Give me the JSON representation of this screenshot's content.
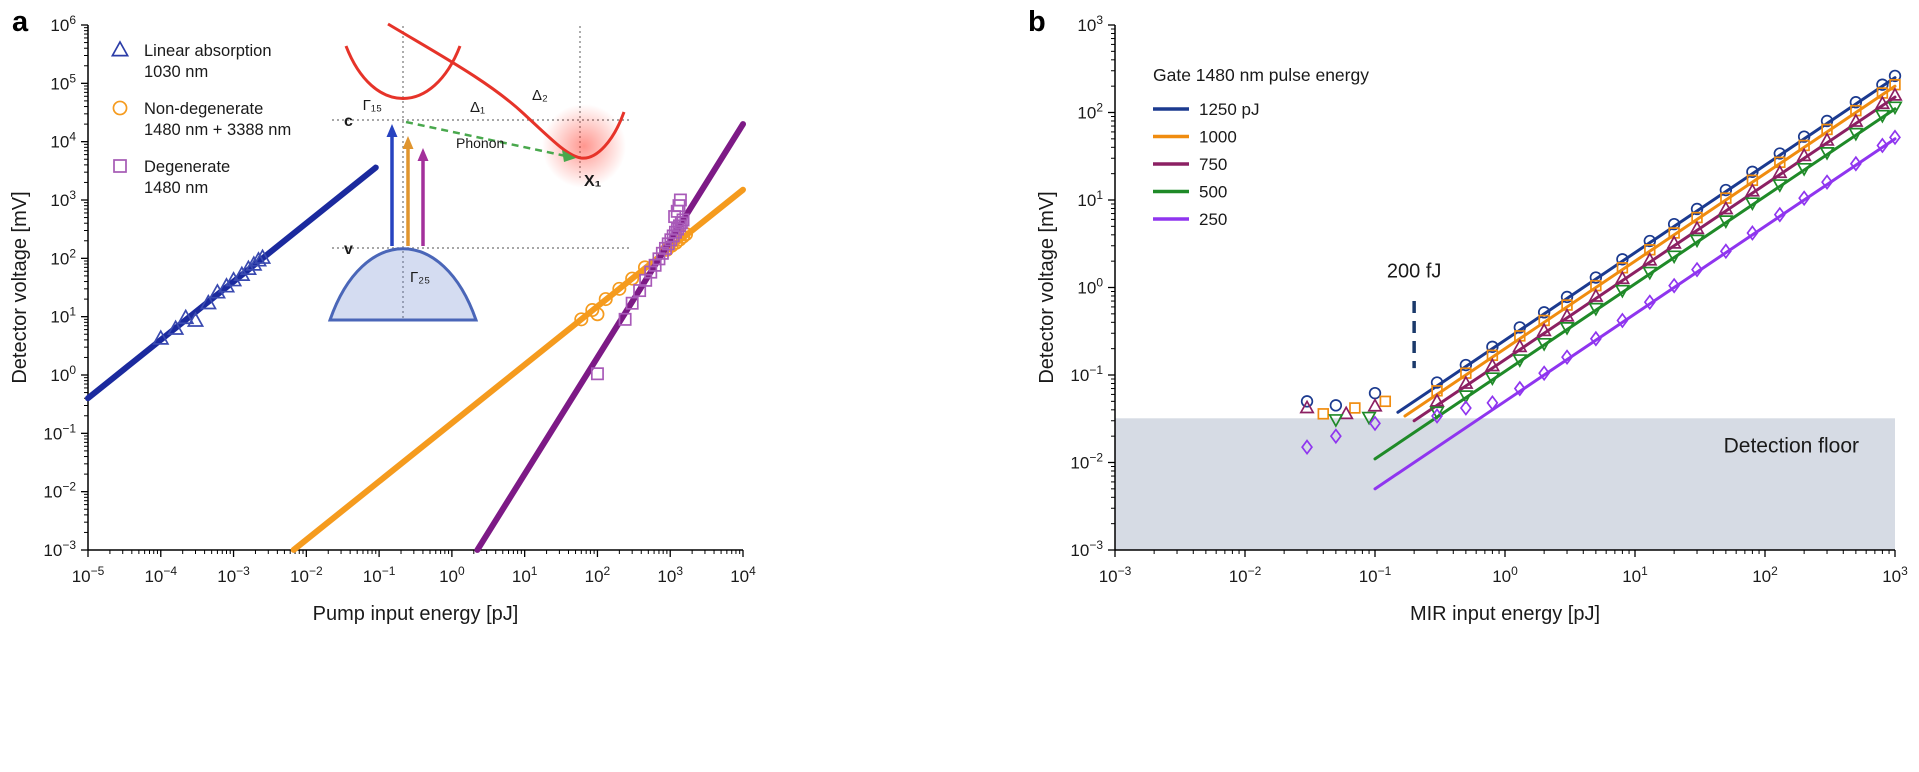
{
  "figure": {
    "panel_a_label": "a",
    "panel_b_label": "b"
  },
  "chart_data": [
    {
      "id": "a",
      "type": "scatter",
      "xscale": "log",
      "yscale": "log",
      "xlabel": "Pump input energy [pJ]",
      "ylabel": "Detector voltage [mV]",
      "xlim": [
        1e-05,
        10000.0
      ],
      "ylim": [
        0.001,
        1000000.0
      ],
      "legend": {
        "entries": [
          {
            "label": "Linear absorption",
            "label2": "1030 nm",
            "marker": "triangle-up",
            "color": "#2c3da8"
          },
          {
            "label": "Non-degenerate",
            "label2": "1480 nm + 3388 nm",
            "marker": "circle",
            "color": "#f59b1e"
          },
          {
            "label": "Degenerate",
            "label2": "1480 nm",
            "marker": "square",
            "color": "#a55ab4"
          }
        ]
      },
      "series": [
        {
          "name": "Linear absorption 1030 nm",
          "color": "#1b2a9e",
          "marker_color": "#3a4ab0",
          "marker": "triangle-up",
          "fit_line": {
            "coeff": 40000,
            "power": 1.0,
            "x_start": 1e-05,
            "x_end": 0.09,
            "width": 6
          },
          "points": [
            [
              0.0001,
              4.2
            ],
            [
              0.00016,
              6.2
            ],
            [
              0.00022,
              9.5
            ],
            [
              0.0003,
              8.5
            ],
            [
              0.00045,
              17
            ],
            [
              0.0006,
              26
            ],
            [
              0.0008,
              33
            ],
            [
              0.001,
              42
            ],
            [
              0.0013,
              52
            ],
            [
              0.0016,
              66
            ],
            [
              0.0019,
              78
            ],
            [
              0.0022,
              92
            ],
            [
              0.0025,
              102
            ]
          ]
        },
        {
          "name": "Non-degenerate 1480 nm + 3388 nm",
          "color": "#f59b1e",
          "marker": "circle",
          "fit_line": {
            "coeff": 0.15,
            "power": 1.0,
            "x_start": 0.0067,
            "x_end": 10000,
            "width": 6
          },
          "points": [
            [
              60,
              9
            ],
            [
              85,
              13
            ],
            [
              100,
              11
            ],
            [
              130,
              20
            ],
            [
              200,
              30
            ],
            [
              300,
              45
            ],
            [
              450,
              70
            ],
            [
              900,
              140
            ],
            [
              1050,
              165
            ],
            [
              1200,
              185
            ],
            [
              1350,
              210
            ],
            [
              1500,
              235
            ],
            [
              1650,
              260
            ]
          ]
        },
        {
          "name": "Degenerate 1480 nm",
          "color": "#7d1a86",
          "marker_color": "#a85ab8",
          "marker": "square",
          "fit_line": {
            "coeff": 0.0002,
            "power": 2.0,
            "x_start": 2.24,
            "x_end": 10000,
            "width": 6
          },
          "points": [
            [
              100,
              1.05
            ],
            [
              240,
              9
            ],
            [
              300,
              17
            ],
            [
              380,
              28
            ],
            [
              460,
              42
            ],
            [
              540,
              58
            ],
            [
              620,
              76
            ],
            [
              700,
              98
            ],
            [
              780,
              122
            ],
            [
              860,
              148
            ],
            [
              940,
              177
            ],
            [
              1020,
              208
            ],
            [
              1100,
              242
            ],
            [
              1180,
              280
            ],
            [
              1260,
              318
            ],
            [
              1340,
              360
            ],
            [
              1420,
              405
            ],
            [
              1500,
              455
            ],
            [
              1150,
              520
            ],
            [
              1250,
              640
            ],
            [
              1320,
              800
            ],
            [
              1380,
              1000
            ]
          ]
        }
      ],
      "inset": {
        "labels": {
          "gamma15": "Γ₁₅",
          "gamma25": "Γ₂₅",
          "delta1": "Δ₁",
          "delta2": "Δ₂",
          "c": "c",
          "v": "v",
          "x1": "X₁",
          "phonon": "Phonon"
        }
      }
    },
    {
      "id": "b",
      "type": "scatter",
      "xscale": "log",
      "yscale": "log",
      "xlabel": "MIR input energy [pJ]",
      "ylabel": "Detector voltage [mV]",
      "xlim": [
        0.001,
        1000.0
      ],
      "ylim": [
        0.001,
        1000.0
      ],
      "legend": {
        "title": "Gate 1480 nm pulse energy",
        "entries": [
          {
            "label": "1250 pJ",
            "color": "#1b3a8f"
          },
          {
            "label": "1000",
            "color": "#f08c0f"
          },
          {
            "label": "750",
            "color": "#8c2063"
          },
          {
            "label": "500",
            "color": "#1f8a28"
          },
          {
            "label": "250",
            "color": "#8f35ef"
          }
        ]
      },
      "annotations": {
        "floor": {
          "label": "Detection floor",
          "y_top": 0.032,
          "label_y": 0.013,
          "color": "#d6dbe4"
        },
        "pulse_marker": {
          "label": "200 fJ",
          "x": 0.2,
          "text_y": 1.3,
          "line_y_top": 0.7,
          "line_y_bottom": 0.12,
          "color": "#1b3a6b"
        }
      },
      "series": [
        {
          "name": "Gate 1250 pJ",
          "color": "#1b3a8f",
          "marker": "circle",
          "fit_line": {
            "coeff": 0.25,
            "power": 1.0,
            "x_start": 0.15,
            "x_end": 1000,
            "width": 3
          },
          "points": [
            [
              0.03,
              0.05
            ],
            [
              0.05,
              0.045
            ],
            [
              0.1,
              0.062
            ],
            [
              0.3,
              0.082
            ],
            [
              0.5,
              0.13
            ],
            [
              0.8,
              0.21
            ],
            [
              1.3,
              0.35
            ],
            [
              2,
              0.52
            ],
            [
              3,
              0.78
            ],
            [
              5,
              1.3
            ],
            [
              8,
              2.1
            ],
            [
              13,
              3.4
            ],
            [
              20,
              5.3
            ],
            [
              30,
              7.9
            ],
            [
              50,
              13
            ],
            [
              80,
              21
            ],
            [
              130,
              34
            ],
            [
              200,
              53
            ],
            [
              300,
              80
            ],
            [
              500,
              131
            ],
            [
              800,
              208
            ],
            [
              1000,
              262
            ]
          ]
        },
        {
          "name": "Gate 1000 pJ",
          "color": "#f08c0f",
          "marker": "square",
          "fit_line": {
            "coeff": 0.2,
            "power": 1.0,
            "x_start": 0.17,
            "x_end": 1000,
            "width": 3
          },
          "points": [
            [
              0.04,
              0.036
            ],
            [
              0.07,
              0.042
            ],
            [
              0.12,
              0.05
            ],
            [
              0.3,
              0.066
            ],
            [
              0.5,
              0.105
            ],
            [
              0.8,
              0.168
            ],
            [
              1.3,
              0.28
            ],
            [
              2,
              0.42
            ],
            [
              3,
              0.63
            ],
            [
              5,
              1.05
            ],
            [
              8,
              1.68
            ],
            [
              13,
              2.7
            ],
            [
              20,
              4.2
            ],
            [
              30,
              6.3
            ],
            [
              50,
              10.5
            ],
            [
              80,
              16.8
            ],
            [
              130,
              27
            ],
            [
              200,
              42
            ],
            [
              300,
              64
            ],
            [
              500,
              105
            ],
            [
              800,
              167
            ],
            [
              1000,
              208
            ]
          ]
        },
        {
          "name": "Gate 750 pJ",
          "color": "#8c2063",
          "marker": "triangle-up",
          "fit_line": {
            "coeff": 0.15,
            "power": 1.0,
            "x_start": 0.2,
            "x_end": 1000,
            "width": 3
          },
          "points": [
            [
              0.03,
              0.042
            ],
            [
              0.06,
              0.036
            ],
            [
              0.1,
              0.044
            ],
            [
              0.3,
              0.05
            ],
            [
              0.5,
              0.08
            ],
            [
              0.8,
              0.127
            ],
            [
              1.3,
              0.21
            ],
            [
              2,
              0.32
            ],
            [
              3,
              0.47
            ],
            [
              5,
              0.79
            ],
            [
              8,
              1.26
            ],
            [
              13,
              2.05
            ],
            [
              20,
              3.2
            ],
            [
              30,
              4.7
            ],
            [
              50,
              7.9
            ],
            [
              80,
              12.6
            ],
            [
              130,
              20.5
            ],
            [
              200,
              32
            ],
            [
              300,
              48
            ],
            [
              500,
              79
            ],
            [
              800,
              126
            ],
            [
              1000,
              157
            ]
          ]
        },
        {
          "name": "Gate 500 pJ",
          "color": "#1f8a28",
          "marker": "triangle-down",
          "fit_line": {
            "coeff": 0.11,
            "power": 1.0,
            "x_start": 0.1,
            "x_end": 1000,
            "width": 3
          },
          "points": [
            [
              0.05,
              0.031
            ],
            [
              0.09,
              0.033
            ],
            [
              0.3,
              0.038
            ],
            [
              0.5,
              0.058
            ],
            [
              0.8,
              0.093
            ],
            [
              1.3,
              0.15
            ],
            [
              2,
              0.23
            ],
            [
              3,
              0.35
            ],
            [
              5,
              0.58
            ],
            [
              8,
              0.93
            ],
            [
              13,
              1.5
            ],
            [
              20,
              2.3
            ],
            [
              30,
              3.5
            ],
            [
              50,
              5.8
            ],
            [
              80,
              9.3
            ],
            [
              130,
              15
            ],
            [
              200,
              23
            ],
            [
              300,
              35
            ],
            [
              500,
              58
            ],
            [
              800,
              93
            ],
            [
              1000,
              116
            ]
          ]
        },
        {
          "name": "Gate 250 pJ",
          "color": "#8f35ef",
          "marker": "diamond",
          "fit_line": {
            "coeff": 0.05,
            "power": 1.0,
            "x_start": 0.1,
            "x_end": 1000,
            "width": 3
          },
          "points": [
            [
              0.03,
              0.015
            ],
            [
              0.05,
              0.02
            ],
            [
              0.1,
              0.028
            ],
            [
              0.3,
              0.034
            ],
            [
              0.5,
              0.042
            ],
            [
              0.8,
              0.048
            ],
            [
              1.3,
              0.07
            ],
            [
              2,
              0.105
            ],
            [
              3,
              0.16
            ],
            [
              5,
              0.26
            ],
            [
              8,
              0.42
            ],
            [
              13,
              0.68
            ],
            [
              20,
              1.05
            ],
            [
              30,
              1.6
            ],
            [
              50,
              2.6
            ],
            [
              80,
              4.2
            ],
            [
              130,
              6.8
            ],
            [
              200,
              10.5
            ],
            [
              300,
              16
            ],
            [
              500,
              26
            ],
            [
              800,
              42
            ],
            [
              1000,
              52
            ]
          ]
        }
      ]
    }
  ]
}
